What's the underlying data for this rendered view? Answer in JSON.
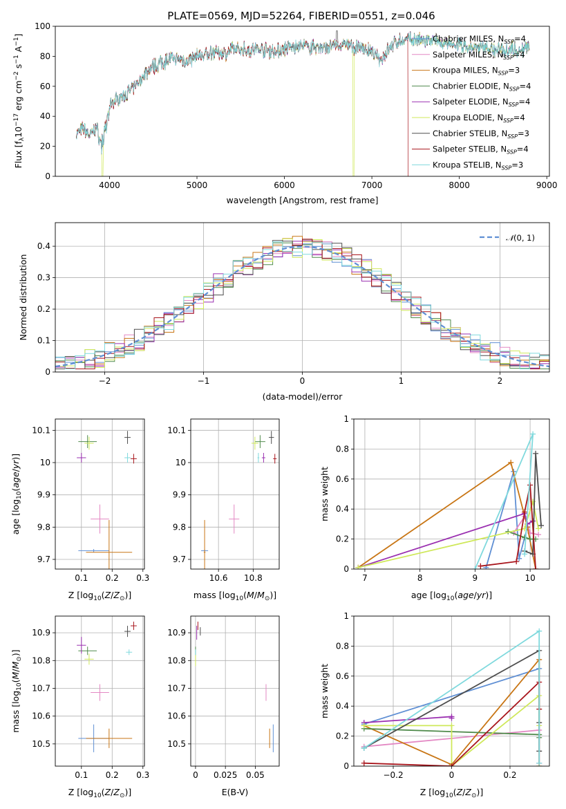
{
  "title": "PLATE=0569, MJD=52264, FIBERID=0551, z=0.046",
  "colors": {
    "chabrier_miles": "#5f8fd4",
    "salpeter_miles": "#e387c3",
    "kroupa_miles": "#c87514",
    "chabrier_elodie": "#4f8a4b",
    "salpeter_elodie": "#9a2fb0",
    "kroupa_elodie": "#cfe85a",
    "chabrier_stelib": "#4d4d4d",
    "salpeter_stelib": "#a8151c",
    "kroupa_stelib": "#7fd9dd",
    "dashed_normal": "#5f8fd4",
    "extra_line_orange": "#e07b20"
  },
  "legend": [
    {
      "key": "chabrier_miles",
      "label": "Chabrier MILES, N_SSP=4"
    },
    {
      "key": "salpeter_miles",
      "label": "Salpeter MILES, N_SSP=4"
    },
    {
      "key": "kroupa_miles",
      "label": "Kroupa MILES, N_SSP=3"
    },
    {
      "key": "chabrier_elodie",
      "label": "Chabrier ELODIE, N_SSP=4"
    },
    {
      "key": "salpeter_elodie",
      "label": "Salpeter ELODIE, N_SSP=4"
    },
    {
      "key": "kroupa_elodie",
      "label": "Kroupa ELODIE, N_SSP=4"
    },
    {
      "key": "chabrier_stelib",
      "label": "Chabrier STELIB, N_SSP=3"
    },
    {
      "key": "salpeter_stelib",
      "label": "Salpeter STELIB, N_SSP=4"
    },
    {
      "key": "kroupa_stelib",
      "label": "Kroupa STELIB, N_SSP=3"
    }
  ],
  "chart_data": [
    {
      "id": "spectrum",
      "type": "line",
      "xlabel": "wavelength [Angstrom, rest frame]",
      "ylabel": "Flux [f_λ 10^-17 erg cm^-2 s^-1 A^-1]",
      "xlim": [
        3380,
        9030
      ],
      "ylim": [
        0,
        100
      ],
      "xticks": [
        4000,
        5000,
        6000,
        7000,
        8000,
        9000
      ],
      "yticks": [
        0,
        20,
        40,
        60,
        80,
        100
      ],
      "grid": false,
      "legend_position": "upper right",
      "continuum": {
        "x": [
          3620,
          3700,
          3780,
          3850,
          3900,
          3960,
          4000,
          4100,
          4200,
          4300,
          4400,
          4500,
          4600,
          4700,
          4800,
          4900,
          5000,
          5100,
          5200,
          5300,
          5400,
          5500,
          5600,
          5700,
          5800,
          5900,
          6000,
          6100,
          6200,
          6300,
          6400,
          6500,
          6600,
          6700,
          6800,
          6900,
          7000,
          7100,
          7200,
          7300,
          7400,
          7500,
          7600,
          7700,
          7800,
          7900,
          8000,
          8100,
          8200,
          8300,
          8400,
          8500,
          8600,
          8700,
          8800
        ],
        "y": [
          28,
          32,
          27,
          33,
          22,
          36,
          48,
          52,
          55,
          60,
          68,
          73,
          76,
          78,
          78,
          77,
          80,
          81,
          83,
          82,
          84,
          85,
          84,
          85,
          84,
          83,
          85,
          86,
          87,
          86,
          86,
          86,
          87,
          88,
          86,
          86,
          82,
          78,
          86,
          90,
          91,
          91,
          90,
          90,
          89,
          87,
          88,
          86,
          85,
          86,
          84,
          85,
          85,
          84,
          86
        ]
      },
      "dropouts": [
        {
          "series": "kroupa_elodie",
          "x": 3920
        },
        {
          "series": "kroupa_elodie",
          "x": 6790
        },
        {
          "series": "salpeter_stelib",
          "x": 7420
        },
        {
          "series": "chabrier_stelib",
          "x": 6600
        }
      ]
    },
    {
      "id": "residuals",
      "type": "histogram",
      "xlabel": "(data-model)/error",
      "ylabel": "Normed distribution",
      "xlim": [
        -2.5,
        2.5
      ],
      "ylim": [
        0,
        0.475
      ],
      "xticks": [
        -2,
        -1,
        0,
        1,
        2
      ],
      "yticks": [
        0.0,
        0.1,
        0.2,
        0.3,
        0.4
      ],
      "grid": true,
      "legend": [
        {
          "label": "N(0,1)",
          "style": "dashed"
        }
      ],
      "legend_position": "upper right",
      "bin_width": 0.1
    },
    {
      "id": "age_vs_Z",
      "type": "scatter_errorbars",
      "xlabel": "Z [log10(Z/Z_sun)]",
      "ylabel": "age [log10(age/yr)]",
      "xlim": [
        0.015,
        0.305
      ],
      "ylim": [
        9.67,
        10.135
      ],
      "xticks": [
        0.1,
        0.2,
        0.3
      ],
      "yticks": [
        9.7,
        9.8,
        9.9,
        10.0,
        10.1
      ],
      "grid": true,
      "points": [
        {
          "series": "chabrier_miles",
          "x": 0.14,
          "y": 9.727,
          "xerr": 0.1,
          "yerr": 0.01
        },
        {
          "series": "salpeter_miles",
          "x": 0.16,
          "y": 9.825,
          "xerr": 0.06,
          "yerr": 0.09
        },
        {
          "series": "kroupa_miles",
          "x": 0.19,
          "y": 9.722,
          "xerr": 0.15,
          "yerr": 0.2
        },
        {
          "series": "chabrier_elodie",
          "x": 0.12,
          "y": 10.065,
          "xerr": 0.06,
          "yerr": 0.04
        },
        {
          "series": "salpeter_elodie",
          "x": 0.1,
          "y": 10.015,
          "xerr": 0.03,
          "yerr": 0.03
        },
        {
          "series": "kroupa_elodie",
          "x": 0.125,
          "y": 10.06,
          "xerr": 0.03,
          "yerr": 0.04
        },
        {
          "series": "chabrier_stelib",
          "x": 0.25,
          "y": 10.078,
          "xerr": 0.02,
          "yerr": 0.04
        },
        {
          "series": "salpeter_stelib",
          "x": 0.27,
          "y": 10.012,
          "xerr": 0.02,
          "yerr": 0.03
        },
        {
          "series": "kroupa_stelib",
          "x": 0.25,
          "y": 10.015,
          "xerr": 0.02,
          "yerr": 0.03
        }
      ]
    },
    {
      "id": "age_vs_mass",
      "type": "scatter_errorbars",
      "xlabel": "mass [log10(M/M_sun)]",
      "ylabel": "",
      "xlim": [
        10.44,
        10.95
      ],
      "ylim": [
        9.67,
        10.135
      ],
      "xticks": [
        10.6,
        10.8
      ],
      "yticks": [
        9.7,
        9.8,
        9.9,
        10.0,
        10.1
      ],
      "grid": true,
      "points": [
        {
          "series": "chabrier_miles",
          "x": 10.52,
          "y": 9.727,
          "xerr": 0.04,
          "yerr": 0.01
        },
        {
          "series": "salpeter_miles",
          "x": 10.69,
          "y": 9.825,
          "xerr": 0.06,
          "yerr": 0.09
        },
        {
          "series": "kroupa_miles",
          "x": 10.52,
          "y": 9.722,
          "xerr": 0.01,
          "yerr": 0.2
        },
        {
          "series": "chabrier_elodie",
          "x": 10.84,
          "y": 10.065,
          "xerr": 0.06,
          "yerr": 0.04
        },
        {
          "series": "salpeter_elodie",
          "x": 10.86,
          "y": 10.015,
          "xerr": 0.02,
          "yerr": 0.03
        },
        {
          "series": "kroupa_elodie",
          "x": 10.81,
          "y": 10.06,
          "xerr": 0.04,
          "yerr": 0.04
        },
        {
          "series": "chabrier_stelib",
          "x": 10.905,
          "y": 10.078,
          "xerr": 0.03,
          "yerr": 0.04
        },
        {
          "series": "salpeter_stelib",
          "x": 10.925,
          "y": 10.012,
          "xerr": 0.02,
          "yerr": 0.03
        },
        {
          "series": "kroupa_stelib",
          "x": 10.83,
          "y": 10.015,
          "xerr": 0.01,
          "yerr": 0.03
        }
      ]
    },
    {
      "id": "weight_vs_age",
      "type": "line",
      "xlabel": "age [log10(age/yr)]",
      "ylabel": "mass weight",
      "xlim": [
        6.8,
        10.35
      ],
      "ylim": [
        0,
        1
      ],
      "xticks": [
        7,
        8,
        9,
        10
      ],
      "yticks": [
        0.0,
        0.2,
        0.4,
        0.6,
        0.8,
        1.0
      ],
      "grid": true,
      "series": [
        {
          "key": "chabrier_miles",
          "x": [
            9.2,
            9.7,
            9.8,
            9.95
          ],
          "y": [
            0.01,
            0.65,
            0.07,
            0.28
          ]
        },
        {
          "key": "salpeter_miles",
          "x": [
            9.7,
            9.9,
            10.0,
            10.15
          ],
          "y": [
            0.24,
            0.35,
            0.24,
            0.23
          ]
        },
        {
          "key": "kroupa_miles",
          "x": [
            6.88,
            9.65,
            9.95,
            10.1
          ],
          "y": [
            0.01,
            0.71,
            0.28,
            0.0
          ]
        },
        {
          "key": "chabrier_elodie",
          "x": [
            9.6,
            9.9,
            10.0,
            10.1
          ],
          "y": [
            0.25,
            0.21,
            0.2,
            0.2
          ]
        },
        {
          "key": "salpeter_elodie",
          "x": [
            6.88,
            9.9,
            9.95,
            10.05
          ],
          "y": [
            0.01,
            0.37,
            0.3,
            0.32
          ]
        },
        {
          "key": "kroupa_elodie",
          "x": [
            6.88,
            9.9,
            10.05,
            10.15
          ],
          "y": [
            0.01,
            0.27,
            0.45,
            0.27
          ]
        },
        {
          "key": "chabrier_stelib",
          "x": [
            9.9,
            10.05,
            10.1,
            10.2
          ],
          "y": [
            0.12,
            0.1,
            0.77,
            0.29
          ]
        },
        {
          "key": "salpeter_stelib",
          "x": [
            9.1,
            9.75,
            9.9,
            10.0,
            10.1
          ],
          "y": [
            0.02,
            0.05,
            0.38,
            0.56,
            0.0
          ]
        },
        {
          "key": "kroupa_stelib",
          "x": [
            9.0,
            10.05,
            9.9
          ],
          "y": [
            0.0,
            0.9,
            0.1
          ]
        }
      ]
    },
    {
      "id": "mass_vs_Z",
      "type": "scatter_errorbars",
      "xlabel": "Z [log10(Z/Z_sun)]",
      "ylabel": "mass [log10(M/M_sun)]",
      "xlim": [
        0.015,
        0.305
      ],
      "ylim": [
        10.42,
        10.96
      ],
      "xticks": [
        0.1,
        0.2,
        0.3
      ],
      "yticks": [
        10.5,
        10.6,
        10.7,
        10.8,
        10.9
      ],
      "grid": true,
      "points": [
        {
          "series": "chabrier_miles",
          "x": 0.14,
          "y": 10.52,
          "xerr": 0.1,
          "yerr": 0.1
        },
        {
          "series": "salpeter_miles",
          "x": 0.16,
          "y": 10.685,
          "xerr": 0.06,
          "yerr": 0.06
        },
        {
          "series": "kroupa_miles",
          "x": 0.19,
          "y": 10.52,
          "xerr": 0.15,
          "yerr": 0.07
        },
        {
          "series": "chabrier_elodie",
          "x": 0.12,
          "y": 10.835,
          "xerr": 0.06,
          "yerr": 0.03
        },
        {
          "series": "salpeter_elodie",
          "x": 0.1,
          "y": 10.855,
          "xerr": 0.03,
          "yerr": 0.06
        },
        {
          "series": "kroupa_elodie",
          "x": 0.125,
          "y": 10.805,
          "xerr": 0.03,
          "yerr": 0.04
        },
        {
          "series": "chabrier_stelib",
          "x": 0.25,
          "y": 10.905,
          "xerr": 0.02,
          "yerr": 0.04
        },
        {
          "series": "salpeter_stelib",
          "x": 0.27,
          "y": 10.925,
          "xerr": 0.02,
          "yerr": 0.03
        },
        {
          "series": "kroupa_stelib",
          "x": 0.255,
          "y": 10.83,
          "xerr": 0.02,
          "yerr": 0.02
        }
      ]
    },
    {
      "id": "mass_vs_ebv",
      "type": "scatter_errorbars",
      "xlabel": "E(B-V)",
      "ylabel": "",
      "xlim": [
        -0.004,
        0.07
      ],
      "ylim": [
        10.42,
        10.96
      ],
      "xticks": [
        0.0,
        0.025,
        0.05
      ],
      "yticks": [
        10.5,
        10.6,
        10.7,
        10.8,
        10.9
      ],
      "grid": true,
      "points": [
        {
          "series": "chabrier_miles",
          "x": 0.065,
          "y": 10.52,
          "yerr": 0.1
        },
        {
          "series": "salpeter_miles",
          "x": 0.059,
          "y": 10.685,
          "yerr": 0.06
        },
        {
          "series": "kroupa_miles",
          "x": 0.062,
          "y": 10.52,
          "yerr": 0.07
        },
        {
          "series": "chabrier_elodie",
          "x": 0.0,
          "y": 10.835,
          "yerr": 0.03
        },
        {
          "series": "salpeter_elodie",
          "x": 0.001,
          "y": 10.9,
          "yerr": 0.05
        },
        {
          "series": "kroupa_elodie",
          "x": 0.0,
          "y": 10.8,
          "yerr": 0.04
        },
        {
          "series": "chabrier_stelib",
          "x": 0.004,
          "y": 10.905,
          "yerr": 0.03
        },
        {
          "series": "salpeter_stelib",
          "x": 0.002,
          "y": 10.925,
          "yerr": 0.03
        },
        {
          "series": "kroupa_stelib",
          "x": 0.0,
          "y": 10.83,
          "yerr": 0.02
        }
      ]
    },
    {
      "id": "weight_vs_Z",
      "type": "line",
      "xlabel": "Z [log10(Z/Z_sun)]",
      "ylabel": "mass weight",
      "xlim": [
        -0.335,
        0.335
      ],
      "ylim": [
        0,
        1
      ],
      "xticks": [
        -0.2,
        0.0,
        0.2
      ],
      "yticks": [
        0.0,
        0.2,
        0.4,
        0.6,
        0.8,
        1.0
      ],
      "grid": true,
      "series": [
        {
          "key": "chabrier_miles",
          "x": [
            -0.3,
            0.3,
            0.3
          ],
          "y": [
            0.28,
            0.65,
            0.02
          ]
        },
        {
          "key": "salpeter_miles",
          "x": [
            -0.3,
            0.3,
            0.3
          ],
          "y": [
            0.13,
            0.24,
            0.02
          ]
        },
        {
          "key": "kroupa_miles",
          "x": [
            -0.3,
            0.0,
            0.3,
            0.3
          ],
          "y": [
            0.27,
            0.01,
            0.71,
            0.0
          ]
        },
        {
          "key": "chabrier_elodie",
          "x": [
            -0.3,
            0.3,
            0.3
          ],
          "y": [
            0.25,
            0.21,
            0.19
          ]
        },
        {
          "key": "salpeter_elodie",
          "x": [
            -0.3,
            0.0,
            0.0
          ],
          "y": [
            0.29,
            0.33,
            0.32
          ]
        },
        {
          "key": "kroupa_elodie",
          "x": [
            -0.3,
            0.0,
            0.0,
            0.3,
            0.3
          ],
          "y": [
            0.27,
            0.27,
            0.0,
            0.47,
            0.27
          ]
        },
        {
          "key": "chabrier_stelib",
          "x": [
            -0.3,
            0.3,
            0.3,
            0.3
          ],
          "y": [
            0.12,
            0.77,
            0.29,
            0.1
          ]
        },
        {
          "key": "salpeter_stelib",
          "x": [
            -0.3,
            0.0,
            0.3,
            0.3
          ],
          "y": [
            0.02,
            0.0,
            0.56,
            0.38
          ]
        },
        {
          "key": "kroupa_stelib",
          "x": [
            -0.3,
            0.3,
            0.3
          ],
          "y": [
            0.12,
            0.9,
            0.02
          ]
        }
      ]
    }
  ]
}
